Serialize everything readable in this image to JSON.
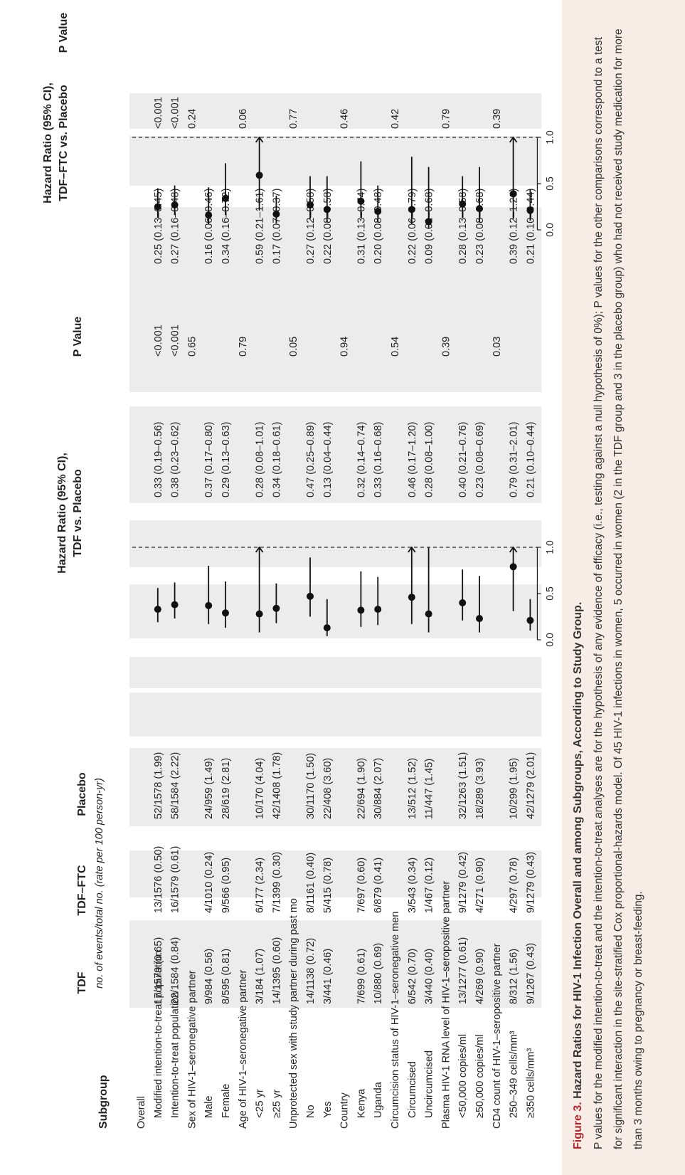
{
  "headers": {
    "subgroup": "Subgroup",
    "tdf": "TDF",
    "tdfftc": "TDF–FTC",
    "placebo": "Placebo",
    "events_note": "no. of events/total no. (rate per 100 person-yr)",
    "hr1_line1": "Hazard Ratio (95% CI),",
    "hr1_line2": "TDF vs. Placebo",
    "pval1": "P Value",
    "hr2_line1": "Hazard Ratio (95% CI),",
    "hr2_line2": "TDF–FTC vs. Placebo",
    "pval2": "P Value"
  },
  "chart_data": {
    "type": "forest",
    "x_ticks": [
      "0.0",
      "0.5",
      "1.0"
    ],
    "xlim": [
      0,
      1.0
    ],
    "reference_line": 1.0,
    "rows": [
      {
        "label": "Overall",
        "kind": "group",
        "p1": "",
        "p2": ""
      },
      {
        "label": "Modified intention-to-treat population",
        "kind": "item",
        "tdf": "17/1579 (0.65)",
        "tdfftc": "13/1576 (0.50)",
        "placebo": "52/1578 (1.99)",
        "hr1": 0.33,
        "lo1": 0.19,
        "hi1": 0.56,
        "ci1": "0.33 (0.19–0.56)",
        "p1": "<0.001",
        "hr2": 0.25,
        "lo2": 0.13,
        "hi2": 0.45,
        "ci2": "0.25 (0.13–0.45)",
        "p2": "<0.001"
      },
      {
        "label": "Intention-to-treat population",
        "kind": "item",
        "tdf": "22/1584 (0.84)",
        "tdfftc": "16/1579 (0.61)",
        "placebo": "58/1584 (2.22)",
        "hr1": 0.38,
        "lo1": 0.23,
        "hi1": 0.62,
        "ci1": "0.38 (0.23–0.62)",
        "p1": "<0.001",
        "hr2": 0.27,
        "lo2": 0.16,
        "hi2": 0.48,
        "ci2": "0.27 (0.16–0.48)",
        "p2": "<0.001"
      },
      {
        "label": "Sex of HIV-1–seronegative partner",
        "kind": "group",
        "p1": "0.65",
        "p2": "0.24"
      },
      {
        "label": "Male",
        "kind": "item",
        "tdf": "9/984 (0.56)",
        "tdfftc": "4/1010 (0.24)",
        "placebo": "24/959 (1.49)",
        "hr1": 0.37,
        "lo1": 0.17,
        "hi1": 0.8,
        "ci1": "0.37 (0.17–0.80)",
        "p1": "",
        "hr2": 0.16,
        "lo2": 0.06,
        "hi2": 0.46,
        "ci2": "0.16 (0.06–0.46)",
        "p2": ""
      },
      {
        "label": "Female",
        "kind": "item",
        "tdf": "8/595 (0.81)",
        "tdfftc": "9/566 (0.95)",
        "placebo": "28/619 (2.81)",
        "hr1": 0.29,
        "lo1": 0.13,
        "hi1": 0.63,
        "ci1": "0.29 (0.13–0.63)",
        "p1": "",
        "hr2": 0.34,
        "lo2": 0.16,
        "hi2": 0.72,
        "ci2": "0.34 (0.16–0.72)",
        "p2": ""
      },
      {
        "label": "Age of HIV-1–seronegative partner",
        "kind": "group",
        "p1": "0.79",
        "p2": "0.06"
      },
      {
        "label": "<25 yr",
        "kind": "item",
        "tdf": "3/184 (1.07)",
        "tdfftc": "6/177 (2.34)",
        "placebo": "10/170 (4.04)",
        "hr1": 0.28,
        "lo1": 0.08,
        "hi1": 1.01,
        "ci1": "0.28 (0.08–1.01)",
        "p1": "",
        "hr2": 0.59,
        "lo2": 0.21,
        "hi2": 1.61,
        "ci2": "0.59 (0.21–1.61)",
        "p2": ""
      },
      {
        "label": "≥25 yr",
        "kind": "item",
        "tdf": "14/1395 (0.60)",
        "tdfftc": "7/1399 (0.30)",
        "placebo": "42/1408 (1.78)",
        "hr1": 0.34,
        "lo1": 0.18,
        "hi1": 0.61,
        "ci1": "0.34 (0.18–0.61)",
        "p1": "",
        "hr2": 0.17,
        "lo2": 0.07,
        "hi2": 0.37,
        "ci2": "0.17 (0.07–0.37)",
        "p2": ""
      },
      {
        "label": "Unprotected sex with study partner during past mo",
        "kind": "group",
        "p1": "0.05",
        "p2": "0.77"
      },
      {
        "label": "No",
        "kind": "item",
        "tdf": "14/1138 (0.72)",
        "tdfftc": "8/1161 (0.40)",
        "placebo": "30/1170 (1.50)",
        "hr1": 0.47,
        "lo1": 0.25,
        "hi1": 0.89,
        "ci1": "0.47 (0.25–0.89)",
        "p1": "",
        "hr2": 0.27,
        "lo2": 0.12,
        "hi2": 0.58,
        "ci2": "0.27 (0.12–0.58)",
        "p2": ""
      },
      {
        "label": "Yes",
        "kind": "item",
        "tdf": "3/441 (0.46)",
        "tdfftc": "5/415 (0.78)",
        "placebo": "22/408 (3.60)",
        "hr1": 0.13,
        "lo1": 0.04,
        "hi1": 0.44,
        "ci1": "0.13 (0.04–0.44)",
        "p1": "",
        "hr2": 0.22,
        "lo2": 0.08,
        "hi2": 0.58,
        "ci2": "0.22 (0.08–0.58)",
        "p2": ""
      },
      {
        "label": "Country",
        "kind": "group",
        "p1": "0.94",
        "p2": "0.46"
      },
      {
        "label": "Kenya",
        "kind": "item",
        "tdf": "7/699 (0.61)",
        "tdfftc": "7/697 (0.60)",
        "placebo": "22/694 (1.90)",
        "hr1": 0.32,
        "lo1": 0.14,
        "hi1": 0.74,
        "ci1": "0.32 (0.14–0.74)",
        "p1": "",
        "hr2": 0.31,
        "lo2": 0.13,
        "hi2": 0.74,
        "ci2": "0.31 (0.13–0.74)",
        "p2": ""
      },
      {
        "label": "Uganda",
        "kind": "item",
        "tdf": "10/880 (0.69)",
        "tdfftc": "6/879 (0.41)",
        "placebo": "30/884 (2.07)",
        "hr1": 0.33,
        "lo1": 0.16,
        "hi1": 0.68,
        "ci1": "0.33 (0.16–0.68)",
        "p1": "",
        "hr2": 0.2,
        "lo2": 0.08,
        "hi2": 0.48,
        "ci2": "0.20 (0.08–0.48)",
        "p2": ""
      },
      {
        "label": "Circumcision status of HIV-1–seronegative men",
        "kind": "group",
        "p1": "0.54",
        "p2": "0.42"
      },
      {
        "label": "Circumcised",
        "kind": "item",
        "tdf": "6/542 (0.70)",
        "tdfftc": "3/543 (0.34)",
        "placebo": "13/512 (1.52)",
        "hr1": 0.46,
        "lo1": 0.17,
        "hi1": 1.2,
        "ci1": "0.46 (0.17–1.20)",
        "p1": "",
        "hr2": 0.22,
        "lo2": 0.06,
        "hi2": 0.79,
        "ci2": "0.22 (0.06–0.79)",
        "p2": ""
      },
      {
        "label": "Uncircumcised",
        "kind": "item",
        "tdf": "3/440 (0.40)",
        "tdfftc": "1/467 (0.12)",
        "placebo": "11/447 (1.45)",
        "hr1": 0.28,
        "lo1": 0.08,
        "hi1": 1.0,
        "ci1": "0.28 (0.08–1.00)",
        "p1": "",
        "hr2": 0.09,
        "lo2": 0.01,
        "hi2": 0.68,
        "ci2": "0.09 (0.01–0.68)",
        "p2": ""
      },
      {
        "label": "Plasma HIV-1 RNA level of HIV-1–seropositive partner",
        "kind": "group",
        "p1": "0.39",
        "p2": "0.79"
      },
      {
        "label": "<50,000 copies/ml",
        "kind": "item",
        "tdf": "13/1277 (0.61)",
        "tdfftc": "9/1279 (0.42)",
        "placebo": "32/1263 (1.51)",
        "hr1": 0.4,
        "lo1": 0.21,
        "hi1": 0.76,
        "ci1": "0.40 (0.21–0.76)",
        "p1": "",
        "hr2": 0.28,
        "lo2": 0.13,
        "hi2": 0.58,
        "ci2": "0.28 (0.13–0.58)",
        "p2": ""
      },
      {
        "label": "≥50,000 copies/ml",
        "kind": "item",
        "tdf": "4/269 (0.90)",
        "tdfftc": "4/271 (0.90)",
        "placebo": "18/289 (3.93)",
        "hr1": 0.23,
        "lo1": 0.08,
        "hi1": 0.69,
        "ci1": "0.23 (0.08–0.69)",
        "p1": "",
        "hr2": 0.23,
        "lo2": 0.08,
        "hi2": 0.68,
        "ci2": "0.23 (0.08–0.68)",
        "p2": ""
      },
      {
        "label": "CD4 count of HIV-1–seropositive partner",
        "kind": "group",
        "p1": "0.03",
        "p2": "0.39"
      },
      {
        "label": "250–349 cells/mm³",
        "kind": "item",
        "tdf": "8/312 (1.56)",
        "tdfftc": "4/297 (0.78)",
        "placebo": "10/299 (1.95)",
        "hr1": 0.79,
        "lo1": 0.31,
        "hi1": 2.01,
        "ci1": "0.79 (0.31–2.01)",
        "p1": "",
        "hr2": 0.39,
        "lo2": 0.12,
        "hi2": 1.26,
        "ci2": "0.39 (0.12–1.26)",
        "p2": ""
      },
      {
        "label": "≥350 cells/mm³",
        "kind": "item",
        "tdf": "9/1267 (0.43)",
        "tdfftc": "9/1279 (0.43)",
        "placebo": "42/1279 (2.01)",
        "hr1": 0.21,
        "lo1": 0.1,
        "hi1": 0.44,
        "ci1": "0.21 (0.10–0.44)",
        "p1": "",
        "hr2": 0.21,
        "lo2": 0.1,
        "hi2": 0.44,
        "ci2": "0.21 (0.10–0.44)",
        "p2": ""
      }
    ]
  },
  "caption": {
    "label": "Figure 3.",
    "title": "Hazard Ratios for HIV-1 Infection Overall and among Subgroups, According to Study Group.",
    "text": "P values for the modified intention-to-treat and the intention-to-treat analyses are for the hypothesis of any evidence of efficacy (i.e., testing against a null hypothesis of 0%); P values for the other comparisons correspond to a test for significant interaction in the site-stratified Cox proportional-hazards model. Of 45 HIV-1 infections in women, 5 occurred in women (2 in the TDF group and 3 in the placebo group) who had not received study medication for more than 3 months owing to pregnancy or breast-feeding."
  }
}
